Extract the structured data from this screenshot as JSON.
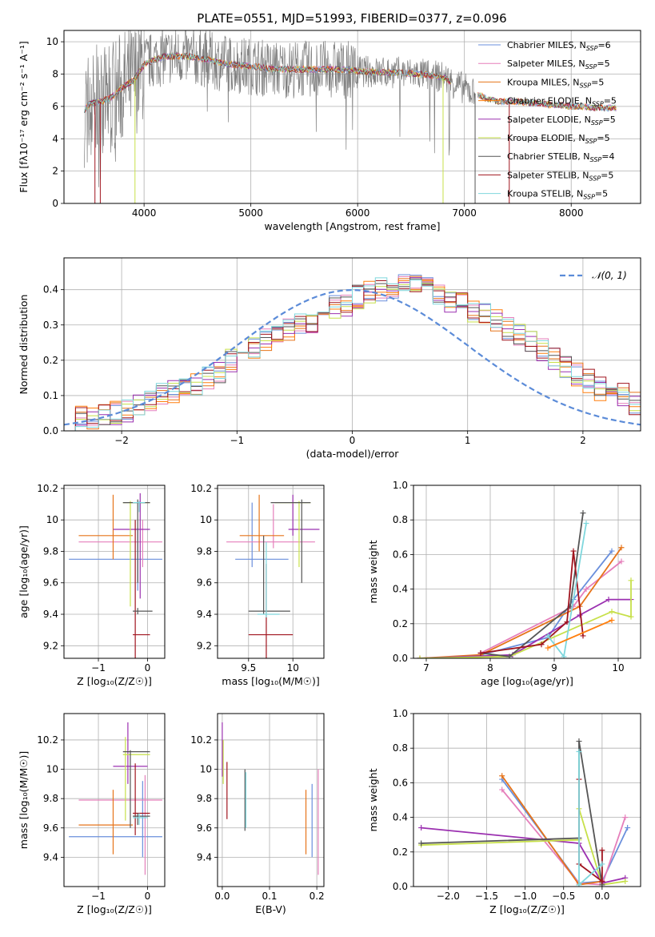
{
  "figure": {
    "title": "PLATE=0551, MJD=51993, FIBERID=0377, z=0.096"
  },
  "colors": {
    "chab_miles": "#6a8fdc",
    "salp_miles": "#e57fbb",
    "krou_miles": "#e6741a",
    "chab_elodie": "#ff7f0e",
    "salp_elodie": "#9b30b0",
    "krou_elodie": "#c7e04a",
    "chab_stelib": "#555555",
    "salp_stelib": "#a0141e",
    "krou_stelib": "#7fd7dd",
    "data": "#808080",
    "normal": "#5b8bd8",
    "grid": "#b0b0b0"
  },
  "chart_data": [
    {
      "id": "spectrum",
      "type": "line",
      "xlabel": "wavelength [Angstrom, rest frame]",
      "ylabel": "Flux [f$_\\lambda$10$^{-17}$ erg cm$^{-2}$ s$^{-1}$ A$^{-1}$]",
      "ylabel_display": "Flux [fλ10⁻¹⁷ erg cm⁻² s⁻¹ A⁻¹]",
      "xlim": [
        3250,
        8650
      ],
      "ylim": [
        0,
        10.7
      ],
      "xticks": [
        4000,
        5000,
        6000,
        7000,
        8000
      ],
      "yticks": [
        0,
        2,
        4,
        6,
        8,
        10
      ],
      "legend_position": "top-right",
      "series": [
        {
          "name": "Chabrier MILES, N$_{SSP}$=6",
          "label": "Chabrier MILES, N",
          "sub": "SSP",
          "n": "=6",
          "color_key": "chab_miles"
        },
        {
          "name": "Salpeter MILES, N$_{SSP}$=5",
          "label": "Salpeter MILES, N",
          "sub": "SSP",
          "n": "=5",
          "color_key": "salp_miles"
        },
        {
          "name": "Kroupa MILES, N$_{SSP}$=5",
          "label": "Kroupa MILES, N",
          "sub": "SSP",
          "n": "=5",
          "color_key": "krou_miles"
        },
        {
          "name": "Chabrier ELODIE, N$_{SSP}$=5",
          "label": "Chabrier ELODIE, N",
          "sub": "SSP",
          "n": "=5",
          "color_key": "chab_elodie"
        },
        {
          "name": "Salpeter ELODIE, N$_{SSP}$=5",
          "label": "Salpeter ELODIE, N",
          "sub": "SSP",
          "n": "=5",
          "color_key": "salp_elodie"
        },
        {
          "name": "Kroupa ELODIE, N$_{SSP}$=5",
          "label": "Kroupa ELODIE, N",
          "sub": "SSP",
          "n": "=5",
          "color_key": "krou_elodie"
        },
        {
          "name": "Chabrier STELIB, N$_{SSP}$=4",
          "label": "Chabrier STELIB, N",
          "sub": "SSP",
          "n": "=4",
          "color_key": "chab_stelib"
        },
        {
          "name": "Salpeter STELIB, N$_{SSP}$=5",
          "label": "Salpeter STELIB, N",
          "sub": "SSP",
          "n": "=5",
          "color_key": "salp_stelib"
        },
        {
          "name": "Kroupa STELIB, N$_{SSP}$=5",
          "label": "Kroupa STELIB, N",
          "sub": "SSP",
          "n": "=5",
          "color_key": "krou_stelib"
        }
      ],
      "continuum": {
        "x": [
          3440,
          3500,
          3600,
          3700,
          3800,
          3900,
          4000,
          4100,
          4200,
          4400,
          4600,
          4800,
          5000,
          5200,
          5400,
          5600,
          5800,
          6000,
          6200,
          6400,
          6600,
          6800,
          7000,
          7100,
          7200,
          7300,
          7400,
          7500,
          7600,
          7700,
          7800,
          7900,
          8000,
          8100,
          8200,
          8300,
          8400
        ],
        "y": [
          5.8,
          6.2,
          6.3,
          6.6,
          7.2,
          7.6,
          8.6,
          8.9,
          9.1,
          9.1,
          8.9,
          8.6,
          8.5,
          8.3,
          8.3,
          8.3,
          8.3,
          8.2,
          8.1,
          8.1,
          8.0,
          7.8,
          7.1,
          6.8,
          6.5,
          6.3,
          6.3,
          6.3,
          6.2,
          6.2,
          6.1,
          6.1,
          6.0,
          6.0,
          5.9,
          5.9,
          5.9
        ]
      }
    },
    {
      "id": "residuals",
      "type": "histogram",
      "xlabel": "(data-model)/error",
      "ylabel": "Normed distribution",
      "xlim": [
        -2.5,
        2.5
      ],
      "ylim": [
        0,
        0.49
      ],
      "xticks": [
        -2,
        -1,
        0,
        1,
        2
      ],
      "yticks": [
        0.0,
        0.1,
        0.2,
        0.3,
        0.4
      ],
      "legend": "$\\mathcal{N}(0,1)$",
      "legend_display": "𝒩(0, 1)",
      "legend_position": "top-right",
      "bin_width": 0.1,
      "base_bins": [
        0.03,
        0.035,
        0.04,
        0.045,
        0.05,
        0.06,
        0.07,
        0.085,
        0.1,
        0.11,
        0.12,
        0.13,
        0.15,
        0.17,
        0.2,
        0.22,
        0.24,
        0.26,
        0.27,
        0.29,
        0.3,
        0.31,
        0.33,
        0.35,
        0.36,
        0.38,
        0.39,
        0.4,
        0.41,
        0.42,
        0.41,
        0.4,
        0.38,
        0.37,
        0.36,
        0.34,
        0.33,
        0.31,
        0.29,
        0.27,
        0.25,
        0.23,
        0.2,
        0.18,
        0.16,
        0.14,
        0.12,
        0.11,
        0.1,
        0.08
      ]
    },
    {
      "id": "age_vs_Z",
      "type": "errorbar",
      "xlabel": "Z [log$_{10}$(Z/Z$_\\odot$)]",
      "xlabel_display": "Z [log₁₀(Z/Z☉)]",
      "ylabel": "age [log$_{10}$(age/yr)]",
      "ylabel_display": "age  [log₁₀(age/yr)]",
      "xlim": [
        -1.7,
        0.35
      ],
      "ylim": [
        9.12,
        10.22
      ],
      "xticks": [
        -1,
        0
      ],
      "yticks": [
        9.2,
        9.4,
        9.6,
        9.8,
        10.0,
        10.2
      ],
      "points": [
        {
          "c": "chab_miles",
          "x": -0.2,
          "xl": -1.6,
          "xh": 0.3,
          "y": 9.75,
          "yl": 9.55,
          "yh": 9.95
        },
        {
          "c": "salp_miles",
          "x": -0.1,
          "xl": -1.4,
          "xh": 0.3,
          "y": 9.86,
          "yl": 9.7,
          "yh": 10.0
        },
        {
          "c": "krou_miles",
          "x": -0.7,
          "xl": -1.4,
          "xh": -0.3,
          "y": 9.9,
          "yl": 9.75,
          "yh": 10.16
        },
        {
          "c": "salp_elodie",
          "x": -0.15,
          "xl": -0.7,
          "xh": 0.05,
          "y": 9.94,
          "yl": 9.5,
          "yh": 10.17
        },
        {
          "c": "krou_elodie",
          "x": -0.35,
          "xl": -0.5,
          "xh": 0.05,
          "y": 10.11,
          "yl": 9.45,
          "yh": 10.12
        },
        {
          "c": "chab_stelib",
          "x": -0.2,
          "xl": -0.5,
          "xh": 0.05,
          "y": 10.11,
          "yl": 9.6,
          "yh": 10.13
        },
        {
          "c": "salp_stelib",
          "x": -0.25,
          "xl": -0.3,
          "xh": 0.05,
          "y": 9.27,
          "yl": 9.12,
          "yh": 10.0
        },
        {
          "c": "chab_stelib",
          "x": -0.2,
          "xl": -0.3,
          "xh": 0.1,
          "y": 9.42,
          "yl": 9.4,
          "yh": 9.44
        },
        {
          "c": "krou_stelib",
          "x": -0.17,
          "xl": -0.3,
          "xh": -0.05,
          "y": 10.11,
          "yl": 10.05,
          "yh": 10.12
        }
      ]
    },
    {
      "id": "age_vs_mass",
      "type": "errorbar",
      "xlabel": "mass [log$_{10}$(M/M$_\\odot$)]",
      "xlabel_display": "mass [log₁₀(M/M☉)]",
      "ylabel": "",
      "xlim": [
        9.15,
        10.35
      ],
      "ylim": [
        9.12,
        10.22
      ],
      "xticks": [
        9.5,
        10.0
      ],
      "yticks": [
        9.2,
        9.4,
        9.6,
        9.8,
        10.0,
        10.2
      ],
      "points": [
        {
          "c": "chab_miles",
          "x": 9.54,
          "xl": 9.35,
          "xh": 9.95,
          "y": 9.75,
          "yl": 9.7,
          "yh": 10.11
        },
        {
          "c": "salp_miles",
          "x": 9.78,
          "xl": 9.25,
          "xh": 10.25,
          "y": 9.86,
          "yl": 9.82,
          "yh": 10.1
        },
        {
          "c": "krou_miles",
          "x": 9.62,
          "xl": 9.4,
          "xh": 9.9,
          "y": 9.9,
          "yl": 9.8,
          "yh": 10.16
        },
        {
          "c": "salp_elodie",
          "x": 10.0,
          "xl": 9.95,
          "xh": 10.3,
          "y": 9.94,
          "yl": 9.9,
          "yh": 10.16
        },
        {
          "c": "krou_elodie",
          "x": 10.07,
          "xl": 9.8,
          "xh": 10.2,
          "y": 10.11,
          "yl": 9.7,
          "yh": 10.12
        },
        {
          "c": "chab_stelib",
          "x": 10.1,
          "xl": 9.75,
          "xh": 10.2,
          "y": 10.11,
          "yl": 9.6,
          "yh": 10.13
        },
        {
          "c": "salp_stelib",
          "x": 9.7,
          "xl": 9.5,
          "xh": 10.0,
          "y": 9.27,
          "yl": 9.12,
          "yh": 9.72
        },
        {
          "c": "chab_stelib",
          "x": 9.67,
          "xl": 9.5,
          "xh": 9.97,
          "y": 9.42,
          "yl": 9.4,
          "yh": 9.9
        },
        {
          "c": "krou_stelib",
          "x": 9.7,
          "xl": 9.6,
          "xh": 9.85,
          "y": 9.4,
          "yl": 9.38,
          "yh": 9.86
        }
      ]
    },
    {
      "id": "weight_vs_age",
      "type": "line",
      "xlabel": "age  [log$_{10}$(age/yr)]",
      "xlabel_display": "age  [log₁₀(age/yr)]",
      "ylabel": "mass weight",
      "xlim": [
        6.8,
        10.35
      ],
      "ylim": [
        0,
        1.0
      ],
      "xticks": [
        7,
        8,
        9,
        10
      ],
      "yticks": [
        0.0,
        0.2,
        0.4,
        0.6,
        0.8,
        1.0
      ],
      "series": [
        {
          "c": "chab_miles",
          "x": [
            7.85,
            8.9,
            9.3,
            9.9
          ],
          "y": [
            0.02,
            0.12,
            0.34,
            0.62
          ]
        },
        {
          "c": "salp_miles",
          "x": [
            7.85,
            9.3,
            9.5,
            10.05
          ],
          "y": [
            0.03,
            0.3,
            0.4,
            0.56
          ]
        },
        {
          "c": "krou_miles",
          "x": [
            6.9,
            7.85,
            9.4,
            10.05
          ],
          "y": [
            0.0,
            0.02,
            0.3,
            0.64
          ]
        },
        {
          "c": "salp_elodie",
          "x": [
            6.9,
            8.35,
            9.4,
            9.85,
            10.2
          ],
          "y": [
            0.0,
            0.02,
            0.25,
            0.34,
            0.34
          ]
        },
        {
          "c": "krou_elodie",
          "x": [
            6.9,
            8.3,
            9.9,
            10.2,
            10.2
          ],
          "y": [
            0.0,
            0.01,
            0.27,
            0.24,
            0.45
          ]
        },
        {
          "c": "chab_stelib",
          "x": [
            7.85,
            8.3,
            9.25,
            9.45
          ],
          "y": [
            0.03,
            0.01,
            0.3,
            0.84
          ]
        },
        {
          "c": "salp_stelib",
          "x": [
            7.85,
            8.8,
            9.2,
            9.3,
            9.45
          ],
          "y": [
            0.03,
            0.08,
            0.21,
            0.62,
            0.13
          ]
        },
        {
          "c": "krou_stelib",
          "x": [
            8.9,
            9.15,
            9.5
          ],
          "y": [
            0.13,
            0.01,
            0.78
          ]
        },
        {
          "c": "chab_elodie",
          "x": [
            8.9,
            9.9
          ],
          "y": [
            0.06,
            0.22
          ]
        }
      ]
    },
    {
      "id": "mass_vs_Z",
      "type": "errorbar",
      "xlabel": "Z [log$_{10}$(Z/Z$_\\odot$)]",
      "xlabel_display": "Z [log₁₀(Z/Z☉)]",
      "ylabel": "mass [log$_{10}$(M/M$_\\odot$)]",
      "ylabel_display": "mass [log₁₀(M/M☉)]",
      "xlim": [
        -1.7,
        0.35
      ],
      "ylim": [
        9.2,
        10.38
      ],
      "xticks": [
        -1,
        0
      ],
      "yticks": [
        9.4,
        9.6,
        9.8,
        10.0,
        10.2
      ],
      "points": [
        {
          "c": "chab_miles",
          "x": -0.1,
          "xl": -1.6,
          "xh": 0.3,
          "y": 9.54,
          "yl": 9.4,
          "yh": 9.92
        },
        {
          "c": "salp_miles",
          "x": -0.05,
          "xl": -1.4,
          "xh": 0.3,
          "y": 9.79,
          "yl": 9.28,
          "yh": 9.96
        },
        {
          "c": "krou_miles",
          "x": -0.7,
          "xl": -1.4,
          "xh": -0.3,
          "y": 9.62,
          "yl": 9.42,
          "yh": 9.86
        },
        {
          "c": "salp_elodie",
          "x": -0.4,
          "xl": -0.7,
          "xh": 0.0,
          "y": 10.02,
          "yl": 9.9,
          "yh": 10.32
        },
        {
          "c": "krou_elodie",
          "x": -0.45,
          "xl": -0.5,
          "xh": 0.05,
          "y": 10.1,
          "yl": 9.65,
          "yh": 10.22
        },
        {
          "c": "chab_stelib",
          "x": -0.35,
          "xl": -0.5,
          "xh": 0.05,
          "y": 10.12,
          "yl": 9.6,
          "yh": 10.13
        },
        {
          "c": "salp_stelib",
          "x": -0.25,
          "xl": -0.3,
          "xh": 0.05,
          "y": 9.7,
          "yl": 9.55,
          "yh": 10.04
        },
        {
          "c": "chab_stelib",
          "x": -0.2,
          "xl": -0.3,
          "xh": 0.05,
          "y": 9.68,
          "yl": 9.62,
          "yh": 9.7
        },
        {
          "c": "krou_stelib",
          "x": -0.17,
          "xl": -0.3,
          "xh": 0.0,
          "y": 9.67,
          "yl": 9.62,
          "yh": 9.7
        }
      ]
    },
    {
      "id": "mass_vs_ebv",
      "type": "errorbar",
      "xlabel": "E(B-V)",
      "ylabel": "",
      "xlim": [
        -0.01,
        0.215
      ],
      "ylim": [
        9.2,
        10.38
      ],
      "xticks": [
        0.0,
        0.1,
        0.2
      ],
      "yticks": [
        9.4,
        9.6,
        9.8,
        10.0,
        10.2
      ],
      "points": [
        {
          "c": "salp_elodie",
          "x": 0.0,
          "yl": 9.95,
          "yh": 10.32
        },
        {
          "c": "krou_elodie",
          "x": 0.002,
          "yl": 9.9,
          "yh": 10.2
        },
        {
          "c": "salp_stelib",
          "x": 0.01,
          "yl": 9.66,
          "yh": 10.05
        },
        {
          "c": "chab_stelib",
          "x": 0.048,
          "yl": 9.58,
          "yh": 10.0
        },
        {
          "c": "krou_stelib",
          "x": 0.05,
          "yl": 9.6,
          "yh": 9.98
        },
        {
          "c": "krou_miles",
          "x": 0.177,
          "yl": 9.42,
          "yh": 9.86
        },
        {
          "c": "chab_miles",
          "x": 0.19,
          "yl": 9.4,
          "yh": 9.9
        },
        {
          "c": "salp_miles",
          "x": 0.203,
          "yl": 9.28,
          "yh": 10.0
        }
      ]
    },
    {
      "id": "weight_vs_Z",
      "type": "line",
      "xlabel": "Z [log$_{10}$(Z/Z$_\\odot$)]",
      "xlabel_display": "Z [log₁₀(Z/Z☉)]",
      "ylabel": "mass weight",
      "xlim": [
        -2.45,
        0.5
      ],
      "ylim": [
        0,
        1.0
      ],
      "xticks": [
        -2.0,
        -1.5,
        -1.0,
        -0.5,
        0.0
      ],
      "yticks": [
        0.0,
        0.2,
        0.4,
        0.6,
        0.8,
        1.0
      ],
      "series": [
        {
          "c": "chab_miles",
          "x": [
            -1.3,
            -0.3,
            0.0,
            0.33
          ],
          "y": [
            0.62,
            0.02,
            0.03,
            0.34
          ]
        },
        {
          "c": "salp_miles",
          "x": [
            -1.3,
            -0.3,
            0.0,
            0.3
          ],
          "y": [
            0.56,
            0.02,
            0.01,
            0.4
          ]
        },
        {
          "c": "krou_miles",
          "x": [
            -1.3,
            -0.3,
            0.0
          ],
          "y": [
            0.64,
            0.01,
            0.03
          ]
        },
        {
          "c": "salp_elodie",
          "x": [
            -2.35,
            -0.3,
            0.0,
            0.3
          ],
          "y": [
            0.34,
            0.25,
            0.02,
            0.05
          ]
        },
        {
          "c": "krou_elodie",
          "x": [
            -2.35,
            -0.3,
            -0.3,
            0.0,
            0.3
          ],
          "y": [
            0.24,
            0.27,
            0.45,
            0.01,
            0.03
          ]
        },
        {
          "c": "chab_stelib",
          "x": [
            -2.35,
            -0.3,
            -0.3,
            0.0
          ],
          "y": [
            0.25,
            0.28,
            0.84,
            0.01
          ]
        },
        {
          "c": "salp_stelib",
          "x": [
            -0.3,
            -0.3,
            0.0,
            0.0
          ],
          "y": [
            0.62,
            0.13,
            0.03,
            0.21
          ]
        },
        {
          "c": "krou_stelib",
          "x": [
            -0.3,
            -0.3,
            0.0
          ],
          "y": [
            0.78,
            0.01,
            0.13
          ]
        }
      ]
    }
  ]
}
